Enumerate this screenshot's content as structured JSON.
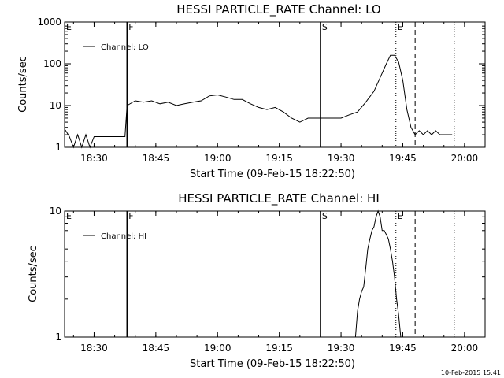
{
  "chart_data": [
    {
      "type": "line",
      "title": "HESSI PARTICLE_RATE Channel: LO",
      "xlabel": "Start Time (09-Feb-15 18:22:50)",
      "ylabel": "Counts/sec",
      "y_scale": "log",
      "ylim": [
        1,
        1000
      ],
      "y_ticks": [
        "1",
        "10",
        "100",
        "1000"
      ],
      "x_range": [
        "18:22:50",
        "20:05:00"
      ],
      "x_ticks": [
        "18:30",
        "18:45",
        "19:00",
        "19:15",
        "19:30",
        "19:45",
        "20:00"
      ],
      "legend": {
        "placement": "top-left",
        "entries": [
          "Channel: LO"
        ]
      },
      "flags": [
        "E",
        "F",
        "S",
        "E"
      ],
      "series": [
        {
          "name": "Channel: LO",
          "x": [
            "18:23",
            "18:24",
            "18:25",
            "18:26",
            "18:27",
            "18:28",
            "18:29",
            "18:30",
            "18:31",
            "18:32",
            "18:33",
            "18:34",
            "18:35",
            "18:36",
            "18:37",
            "18:37:30",
            "18:38",
            "18:40",
            "18:42",
            "18:44",
            "18:46",
            "18:48",
            "18:50",
            "18:52",
            "18:54",
            "18:56",
            "18:58",
            "19:00",
            "19:02",
            "19:04",
            "19:06",
            "19:08",
            "19:10",
            "19:12",
            "19:14",
            "19:16",
            "19:18",
            "19:20",
            "19:22",
            "19:24",
            "19:26",
            "19:28",
            "19:30",
            "19:32",
            "19:34",
            "19:36",
            "19:38",
            "19:40",
            "19:41",
            "19:42",
            "19:43",
            "19:44",
            "19:45",
            "19:46",
            "19:47",
            "19:48",
            "19:49",
            "19:50",
            "19:51",
            "19:52",
            "19:53",
            "19:54",
            "19:55",
            "19:56",
            "19:57"
          ],
          "y": [
            2.6,
            1.8,
            1,
            2,
            1,
            2,
            1,
            1.8,
            1.8,
            1.8,
            1.8,
            1.8,
            1.8,
            1.8,
            1.8,
            1.8,
            10,
            13,
            12,
            13,
            11,
            12,
            10,
            11,
            12,
            13,
            17,
            18,
            16,
            14,
            14,
            11,
            9,
            8,
            9,
            7,
            5,
            4,
            5,
            5,
            5,
            5,
            5,
            6,
            7,
            12,
            22,
            60,
            100,
            160,
            160,
            110,
            40,
            8,
            3,
            2,
            2.5,
            2,
            2.5,
            2,
            2.5,
            2,
            2,
            2,
            2
          ]
        }
      ]
    },
    {
      "type": "line",
      "title": "HESSI PARTICLE_RATE Channel: HI",
      "xlabel": "Start Time (09-Feb-15 18:22:50)",
      "ylabel": "Counts/sec",
      "y_scale": "log",
      "ylim": [
        1,
        10
      ],
      "y_ticks": [
        "1",
        "10"
      ],
      "x_range": [
        "18:22:50",
        "20:05:00"
      ],
      "x_ticks": [
        "18:30",
        "18:45",
        "19:00",
        "19:15",
        "19:30",
        "19:45",
        "20:00"
      ],
      "legend": {
        "placement": "top-left",
        "entries": [
          "Channel: HI"
        ]
      },
      "flags": [
        "E",
        "F",
        "S",
        "E"
      ],
      "series": [
        {
          "name": "Channel: HI",
          "x": [
            "19:33:30",
            "19:34",
            "19:34:30",
            "19:35",
            "19:35:30",
            "19:36",
            "19:36:30",
            "19:37",
            "19:37:30",
            "19:38",
            "19:38:30",
            "19:39",
            "19:39:30",
            "19:40",
            "19:40:30",
            "19:41",
            "19:41:30",
            "19:42",
            "19:42:30",
            "19:43",
            "19:43:30",
            "19:44",
            "19:44:30"
          ],
          "y": [
            1,
            1.6,
            2,
            2.3,
            2.5,
            3.5,
            5,
            6,
            7,
            7.5,
            9,
            10,
            9,
            7,
            7,
            6.5,
            6,
            5,
            4,
            3,
            2,
            1.5,
            1
          ]
        }
      ]
    }
  ],
  "footer": {
    "timestamp": "10-Feb-2015 15:41"
  }
}
